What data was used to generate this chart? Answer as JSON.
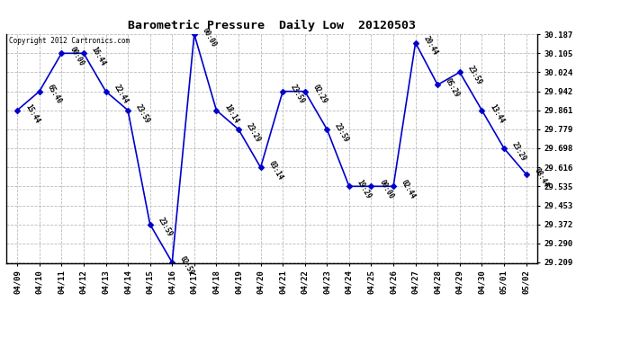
{
  "title": "Barometric Pressure  Daily Low  20120503",
  "copyright": "Copyright 2012 Cartronics.com",
  "line_color": "#0000CC",
  "bg_color": "#ffffff",
  "grid_color": "#bbbbbb",
  "x_labels": [
    "04/09",
    "04/10",
    "04/11",
    "04/12",
    "04/13",
    "04/14",
    "04/15",
    "04/16",
    "04/17",
    "04/18",
    "04/19",
    "04/20",
    "04/21",
    "04/22",
    "04/23",
    "04/24",
    "04/25",
    "04/26",
    "04/27",
    "04/28",
    "04/29",
    "04/30",
    "05/01",
    "05/02"
  ],
  "y_values": [
    29.861,
    29.942,
    30.105,
    30.105,
    29.942,
    29.861,
    29.372,
    29.209,
    30.187,
    29.861,
    29.779,
    29.616,
    29.942,
    29.942,
    29.779,
    29.535,
    29.535,
    29.535,
    30.15,
    29.97,
    30.024,
    29.861,
    29.698,
    29.587
  ],
  "point_labels": [
    "15:44",
    "65:40",
    "00:00",
    "16:44",
    "22:44",
    "23:59",
    "23:59",
    "02:59",
    "00:00",
    "18:14",
    "23:29",
    "03:14",
    "23:59",
    "02:29",
    "23:59",
    "19:29",
    "00:00",
    "02:44",
    "20:44",
    "05:29",
    "23:59",
    "13:44",
    "23:29",
    "08:44"
  ],
  "ylim_min": 29.209,
  "ylim_max": 30.187,
  "yticks": [
    29.209,
    29.29,
    29.372,
    29.453,
    29.535,
    29.616,
    29.698,
    29.779,
    29.861,
    29.942,
    30.024,
    30.105,
    30.187
  ]
}
